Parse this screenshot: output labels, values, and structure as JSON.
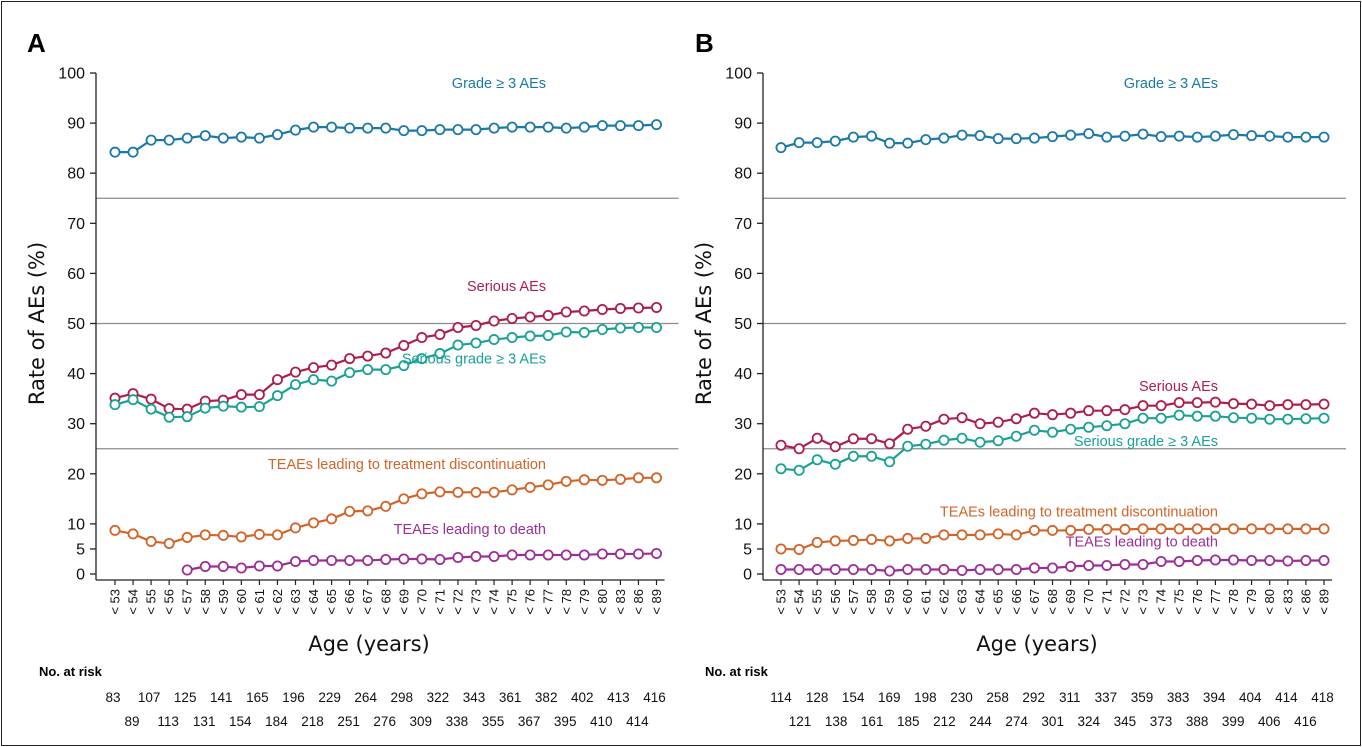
{
  "chart_data": [
    {
      "type": "line",
      "panel_label": "A",
      "xlabel": "Age (years)",
      "ylabel": "Rate of AEs (%)",
      "ylim": [
        0,
        100
      ],
      "yticks": [
        0,
        5,
        10,
        20,
        30,
        40,
        50,
        60,
        70,
        80,
        90,
        100
      ],
      "reference_lines": [
        75,
        50,
        25
      ],
      "categories": [
        "< 53",
        "< 54",
        "< 55",
        "< 56",
        "< 57",
        "< 58",
        "< 59",
        "< 60",
        "< 61",
        "< 62",
        "< 63",
        "< 64",
        "< 65",
        "< 66",
        "< 67",
        "< 68",
        "< 69",
        "< 70",
        "< 71",
        "< 72",
        "< 73",
        "< 74",
        "< 75",
        "< 76",
        "< 77",
        "< 78",
        "< 79",
        "< 80",
        "< 83",
        "< 86",
        "< 89"
      ],
      "series": [
        {
          "name": "Grade ≥ 3 AEs",
          "color": "#1a7aa5",
          "label_y": 98,
          "values": [
            84.2,
            84.2,
            86.6,
            86.6,
            87.0,
            87.5,
            87.0,
            87.2,
            87.0,
            87.7,
            88.6,
            89.2,
            89.2,
            89.0,
            89.0,
            89.0,
            88.5,
            88.5,
            88.7,
            88.7,
            88.7,
            89.0,
            89.2,
            89.2,
            89.2,
            89.0,
            89.2,
            89.5,
            89.5,
            89.5,
            89.7
          ]
        },
        {
          "name": "Serious AEs",
          "color": "#ad1f4a",
          "label_y": 57.5,
          "values": [
            35.1,
            36.0,
            34.9,
            33.0,
            32.9,
            34.5,
            34.7,
            35.8,
            35.8,
            38.8,
            40.3,
            41.2,
            41.7,
            43.0,
            43.5,
            44.1,
            45.6,
            47.2,
            47.8,
            49.2,
            49.6,
            50.5,
            51.0,
            51.3,
            51.6,
            52.3,
            52.5,
            52.8,
            53.0,
            53.1,
            53.2
          ]
        },
        {
          "name": "Serious grade ≥ 3 AEs",
          "color": "#1aa197",
          "label_y": 43,
          "values": [
            33.8,
            34.8,
            32.9,
            31.3,
            31.4,
            33.1,
            33.5,
            33.3,
            33.4,
            35.6,
            37.8,
            38.8,
            38.5,
            40.2,
            40.8,
            40.8,
            41.6,
            43.0,
            44.0,
            45.7,
            46.1,
            46.8,
            47.2,
            47.5,
            47.6,
            48.3,
            48.2,
            48.8,
            49.1,
            49.2,
            49.2
          ]
        },
        {
          "name": "TEAEs leading to treatment discontinuation",
          "color": "#d2642a",
          "label_y": 22,
          "values": [
            8.7,
            8.0,
            6.5,
            6.1,
            7.3,
            7.8,
            7.7,
            7.4,
            7.9,
            7.8,
            9.2,
            10.2,
            11.0,
            12.5,
            12.6,
            13.5,
            15.0,
            16.0,
            16.4,
            16.3,
            16.3,
            16.3,
            16.8,
            17.3,
            17.8,
            18.5,
            18.8,
            18.7,
            18.9,
            19.2,
            19.2
          ]
        },
        {
          "name": "TEAEs leading to death",
          "color": "#9b2f96",
          "label_y": 9,
          "values": [
            null,
            null,
            null,
            null,
            0.8,
            1.5,
            1.5,
            1.2,
            1.6,
            1.6,
            2.5,
            2.7,
            2.7,
            2.7,
            2.7,
            2.9,
            3.0,
            3.0,
            2.9,
            3.3,
            3.5,
            3.5,
            3.8,
            3.8,
            3.8,
            3.8,
            3.8,
            4.0,
            4.0,
            4.0,
            4.1
          ]
        }
      ],
      "risk_title": "No. at risk",
      "risk_row1": [
        "83",
        "107",
        "125",
        "141",
        "165",
        "196",
        "229",
        "264",
        "298",
        "322",
        "343",
        "361",
        "382",
        "402",
        "413",
        "416"
      ],
      "risk_row2": [
        "89",
        "113",
        "131",
        "154",
        "184",
        "218",
        "251",
        "276",
        "309",
        "338",
        "355",
        "367",
        "395",
        "410",
        "414"
      ]
    },
    {
      "type": "line",
      "panel_label": "B",
      "xlabel": "Age (years)",
      "ylabel": "Rate of AEs (%)",
      "ylim": [
        0,
        100
      ],
      "yticks": [
        0,
        5,
        10,
        20,
        30,
        40,
        50,
        60,
        70,
        80,
        90,
        100
      ],
      "reference_lines": [
        75,
        50,
        25
      ],
      "categories": [
        "< 53",
        "< 54",
        "< 55",
        "< 56",
        "< 57",
        "< 58",
        "< 59",
        "< 60",
        "< 61",
        "< 62",
        "< 63",
        "< 64",
        "< 65",
        "< 66",
        "< 67",
        "< 68",
        "< 69",
        "< 70",
        "< 71",
        "< 72",
        "< 73",
        "< 74",
        "< 75",
        "< 76",
        "< 77",
        "< 78",
        "< 79",
        "< 80",
        "< 83",
        "< 86",
        "< 89"
      ],
      "series": [
        {
          "name": "Grade ≥ 3 AEs",
          "color": "#1a7aa5",
          "label_y": 98,
          "values": [
            85.1,
            86.1,
            86.1,
            86.4,
            87.2,
            87.4,
            86.0,
            86.0,
            86.7,
            87.0,
            87.6,
            87.5,
            86.9,
            86.9,
            87.0,
            87.3,
            87.6,
            87.9,
            87.2,
            87.4,
            87.8,
            87.3,
            87.4,
            87.2,
            87.4,
            87.7,
            87.5,
            87.4,
            87.2,
            87.2,
            87.2
          ]
        },
        {
          "name": "Serious AEs",
          "color": "#ad1f4a",
          "label_y": 37.5,
          "values": [
            25.7,
            25.0,
            27.1,
            25.4,
            27.0,
            27.0,
            26.0,
            28.9,
            29.5,
            30.9,
            31.2,
            30.0,
            30.3,
            31.0,
            32.1,
            31.8,
            32.1,
            32.6,
            32.6,
            32.8,
            33.6,
            33.6,
            34.2,
            34.2,
            34.3,
            34.0,
            33.9,
            33.6,
            33.8,
            33.8,
            33.9
          ]
        },
        {
          "name": "Serious grade ≥ 3 AEs",
          "color": "#1aa197",
          "label_y": 26.5,
          "values": [
            21.0,
            20.7,
            22.8,
            21.9,
            23.5,
            23.5,
            22.4,
            25.5,
            25.9,
            26.7,
            27.1,
            26.3,
            26.6,
            27.5,
            28.7,
            28.3,
            28.9,
            29.3,
            29.6,
            30.0,
            31.1,
            31.1,
            31.7,
            31.5,
            31.5,
            31.2,
            31.1,
            30.9,
            30.9,
            31.0,
            31.1
          ]
        },
        {
          "name": "TEAEs leading to treatment discontinuation",
          "color": "#d2642a",
          "label_y": 12.5,
          "values": [
            5.0,
            4.9,
            6.3,
            6.6,
            6.7,
            6.9,
            6.6,
            7.1,
            7.1,
            7.8,
            7.8,
            7.8,
            8.0,
            7.8,
            8.7,
            8.7,
            8.7,
            8.9,
            8.9,
            8.9,
            9.0,
            9.0,
            9.0,
            9.0,
            9.0,
            9.0,
            9.0,
            9.0,
            9.0,
            9.0,
            9.0
          ]
        },
        {
          "name": "TEAEs leading to death",
          "color": "#9b2f96",
          "label_y": 6.5,
          "values": [
            0.9,
            0.9,
            0.9,
            0.9,
            0.9,
            0.9,
            0.6,
            0.9,
            0.9,
            0.9,
            0.7,
            0.9,
            0.9,
            0.9,
            1.2,
            1.2,
            1.5,
            1.7,
            1.7,
            1.9,
            1.9,
            2.5,
            2.5,
            2.7,
            2.8,
            2.8,
            2.7,
            2.7,
            2.6,
            2.7,
            2.7
          ]
        }
      ],
      "risk_title": "No. at risk",
      "risk_row1": [
        "114",
        "128",
        "154",
        "169",
        "198",
        "230",
        "258",
        "292",
        "311",
        "337",
        "359",
        "383",
        "394",
        "404",
        "414",
        "418"
      ],
      "risk_row2": [
        "121",
        "138",
        "161",
        "185",
        "212",
        "244",
        "274",
        "301",
        "324",
        "345",
        "373",
        "388",
        "399",
        "406",
        "416"
      ]
    }
  ]
}
